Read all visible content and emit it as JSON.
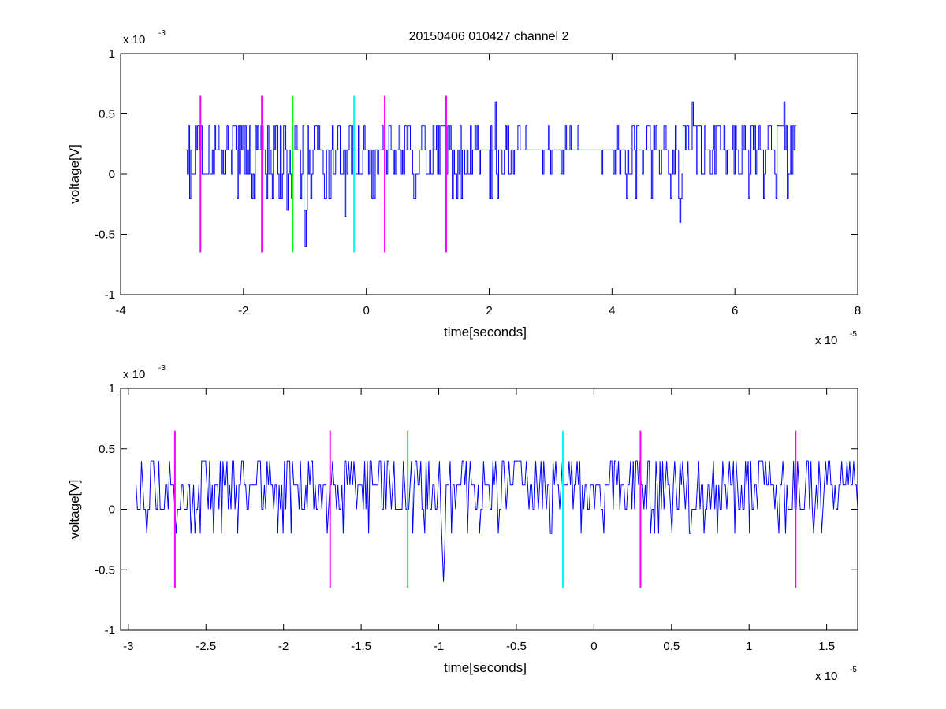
{
  "figure_title": "20150406 010427 channel 2",
  "chart_data": [
    {
      "type": "line",
      "title": "20150406 010427 channel 2",
      "xlabel": "time[seconds]",
      "ylabel": "voltage[V]",
      "x_multiplier": "x 10",
      "x_exponent": "-5",
      "y_multiplier": "x 10",
      "y_exponent": "-3",
      "xlim": [
        -4,
        8
      ],
      "ylim": [
        -1,
        1
      ],
      "xticks": [
        -4,
        -2,
        0,
        2,
        4,
        6,
        8
      ],
      "xtick_labels": [
        "-4",
        "-2",
        "0",
        "2",
        "4",
        "6",
        "8"
      ],
      "yticks": [
        -1,
        -0.5,
        0,
        0.5,
        1
      ],
      "ytick_labels": [
        "-1",
        "-0.5",
        "0",
        "0.5",
        "1"
      ],
      "series": [
        {
          "color": "#0000ff",
          "x_range": [
            -2.95,
            7.0
          ],
          "levels": [
            0,
            0.2,
            0.4
          ],
          "occasional_levels": [
            -0.2,
            0.6
          ],
          "min_value": -0.6,
          "max_value": 0.6,
          "dips": [
            [
              -1.0,
              -0.6
            ],
            [
              5.1,
              -0.4
            ],
            [
              -0.35,
              -0.35
            ],
            [
              -1.3,
              -0.3
            ]
          ],
          "peaks": [
            [
              2.1,
              0.6
            ],
            [
              5.3,
              0.6
            ],
            [
              6.8,
              0.6
            ]
          ],
          "quiet_range": [
            2.5,
            4.2
          ]
        }
      ],
      "vertical_markers": [
        {
          "x": -2.7,
          "color": "#ff00ff",
          "ymin": -0.65,
          "ymax": 0.65
        },
        {
          "x": -1.7,
          "color": "#ff00ff",
          "ymin": -0.65,
          "ymax": 0.65
        },
        {
          "x": -1.2,
          "color": "#00ff00",
          "ymin": -0.65,
          "ymax": 0.65
        },
        {
          "x": -0.2,
          "color": "#00ffff",
          "ymin": -0.65,
          "ymax": 0.65
        },
        {
          "x": 0.3,
          "color": "#ff00ff",
          "ymin": -0.65,
          "ymax": 0.65
        },
        {
          "x": 1.3,
          "color": "#ff00ff",
          "ymin": -0.65,
          "ymax": 0.65
        }
      ]
    },
    {
      "type": "line",
      "title": "",
      "xlabel": "time[seconds]",
      "ylabel": "voltage[V]",
      "x_multiplier": "x 10",
      "x_exponent": "-5",
      "y_multiplier": "x 10",
      "y_exponent": "-3",
      "xlim": [
        -3.05,
        1.7
      ],
      "ylim": [
        -1,
        1
      ],
      "xticks": [
        -3,
        -2.5,
        -2,
        -1.5,
        -1,
        -0.5,
        0,
        0.5,
        1,
        1.5
      ],
      "xtick_labels": [
        "-3",
        "-2.5",
        "-2",
        "-1.5",
        "-1",
        "-0.5",
        "0",
        "0.5",
        "1",
        "1.5"
      ],
      "yticks": [
        -1,
        -0.5,
        0,
        0.5,
        1
      ],
      "ytick_labels": [
        "-1",
        "-0.5",
        "0",
        "0.5",
        "1"
      ],
      "series": [
        {
          "color": "#0000ff",
          "x_range": [
            -2.95,
            1.7
          ],
          "levels": [
            0,
            0.2,
            0.4
          ],
          "occasional_levels": [
            -0.2
          ],
          "min_value": -0.6,
          "max_value": 0.4,
          "dips": [
            [
              -0.97,
              -0.6
            ],
            [
              -1.72,
              -0.2
            ],
            [
              -2.6,
              -0.2
            ],
            [
              -1.95,
              -0.2
            ]
          ]
        }
      ],
      "vertical_markers": [
        {
          "x": -2.7,
          "color": "#ff00ff",
          "ymin": -0.65,
          "ymax": 0.65
        },
        {
          "x": -1.7,
          "color": "#ff00ff",
          "ymin": -0.65,
          "ymax": 0.65
        },
        {
          "x": -1.2,
          "color": "#00ff00",
          "ymin": -0.65,
          "ymax": 0.65
        },
        {
          "x": -0.2,
          "color": "#00ffff",
          "ymin": -0.65,
          "ymax": 0.65
        },
        {
          "x": 0.3,
          "color": "#ff00ff",
          "ymin": -0.65,
          "ymax": 0.65
        },
        {
          "x": 1.3,
          "color": "#ff00ff",
          "ymin": -0.65,
          "ymax": 0.65
        }
      ]
    }
  ]
}
